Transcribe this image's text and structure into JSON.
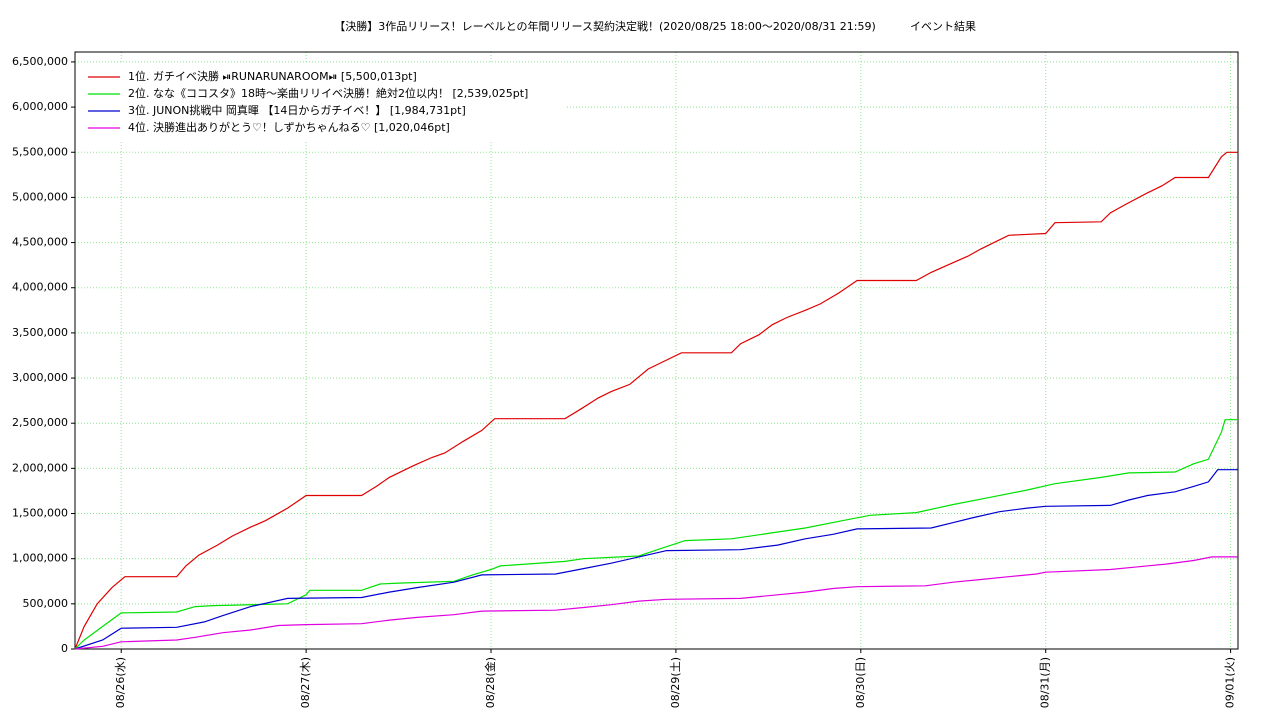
{
  "chart_data": {
    "type": "line",
    "title": "【決勝】3作品リリース！レーベルとの年間リリース契約決定戦！(2020/08/25 18:00〜2020/08/31 21:59)",
    "subtitle": "イベント結果",
    "xlim": [
      -0.25,
      6.04
    ],
    "xticks": [
      {
        "value": 0,
        "label": "08/26(水)"
      },
      {
        "value": 1,
        "label": "08/27(木)"
      },
      {
        "value": 2,
        "label": "08/28(金)"
      },
      {
        "value": 3,
        "label": "08/29(土)"
      },
      {
        "value": 4,
        "label": "08/30(日)"
      },
      {
        "value": 5,
        "label": "08/31(月)"
      },
      {
        "value": 6,
        "label": "09/01(火)"
      }
    ],
    "ylim": [
      0,
      6610000
    ],
    "yticks": [
      0,
      {
        "value": 500000,
        "label": "500,000"
      },
      {
        "value": 1000000,
        "label": "1,000,000"
      },
      {
        "value": 1500000,
        "label": "1,500,000"
      },
      {
        "value": 2000000,
        "label": "2,000,000"
      },
      {
        "value": 2500000,
        "label": "2,500,000"
      },
      {
        "value": 3000000,
        "label": "3,000,000"
      },
      {
        "value": 3500000,
        "label": "3,500,000"
      },
      {
        "value": 4000000,
        "label": "4,000,000"
      },
      {
        "value": 4500000,
        "label": "4,500,000"
      },
      {
        "value": 5000000,
        "label": "5,000,000"
      },
      {
        "value": 5500000,
        "label": "5,500,000"
      },
      {
        "value": 6000000,
        "label": "6,000,000"
      },
      {
        "value": 6500000,
        "label": "6,500,000"
      }
    ],
    "grid": true,
    "legend": "upper-left",
    "series": [
      {
        "name": "1位. ガチイベ決勝 ⏯RUNARUNAROOM⏯  [5,500,013pt]",
        "color": "#e00000",
        "x": [
          -0.25,
          -0.2,
          -0.13,
          -0.05,
          0.02,
          0.3,
          0.35,
          0.42,
          0.52,
          0.6,
          0.7,
          0.78,
          0.9,
          1.0,
          1.3,
          1.38,
          1.45,
          1.58,
          1.68,
          1.75,
          1.85,
          1.95,
          2.02,
          2.4,
          2.48,
          2.58,
          2.65,
          2.75,
          2.85,
          2.95,
          3.03,
          3.3,
          3.35,
          3.45,
          3.52,
          3.6,
          3.7,
          3.78,
          3.88,
          3.98,
          4.3,
          4.38,
          4.47,
          4.58,
          4.65,
          4.72,
          4.8,
          5.0,
          5.05,
          5.3,
          5.35,
          5.43,
          5.55,
          5.63,
          5.7,
          5.88,
          5.95,
          5.98,
          6.04
        ],
        "values": [
          0,
          250000,
          500000,
          680000,
          800000,
          800000,
          920000,
          1040000,
          1150000,
          1250000,
          1350000,
          1420000,
          1560000,
          1700000,
          1700000,
          1800000,
          1900000,
          2030000,
          2120000,
          2170000,
          2300000,
          2420000,
          2550000,
          2550000,
          2650000,
          2780000,
          2850000,
          2930000,
          3100000,
          3200000,
          3280000,
          3280000,
          3380000,
          3480000,
          3590000,
          3670000,
          3750000,
          3820000,
          3940000,
          4080000,
          4080000,
          4170000,
          4250000,
          4350000,
          4430000,
          4500000,
          4580000,
          4600000,
          4720000,
          4730000,
          4830000,
          4920000,
          5050000,
          5130000,
          5220000,
          5220000,
          5450000,
          5500013,
          5500013
        ]
      },
      {
        "name": "2位. なな《ココスタ》18時〜楽曲リリイベ決勝！絶対2位以内！ [2,539,025pt]",
        "color": "#00e000",
        "x": [
          -0.25,
          -0.2,
          -0.1,
          0,
          0.3,
          0.4,
          0.5,
          0.9,
          1.0,
          1.02,
          1.3,
          1.4,
          1.5,
          1.8,
          1.9,
          2.0,
          2.05,
          2.4,
          2.5,
          2.8,
          2.9,
          3.05,
          3.3,
          3.5,
          3.7,
          3.9,
          4.05,
          4.3,
          4.5,
          4.7,
          4.9,
          5.05,
          5.3,
          5.45,
          5.7,
          5.8,
          5.88,
          5.95,
          5.97,
          6.04
        ],
        "values": [
          0,
          100000,
          250000,
          400000,
          410000,
          470000,
          480000,
          500000,
          600000,
          650000,
          650000,
          720000,
          730000,
          750000,
          820000,
          880000,
          920000,
          970000,
          1000000,
          1030000,
          1100000,
          1200000,
          1220000,
          1280000,
          1340000,
          1420000,
          1480000,
          1510000,
          1600000,
          1680000,
          1760000,
          1830000,
          1900000,
          1950000,
          1960000,
          2050000,
          2100000,
          2400000,
          2539025,
          2539025
        ]
      },
      {
        "name": "3位. JUNON挑戦中 岡真暉 【14日からガチイベ！】 [1,984,731pt]",
        "color": "#0000d0",
        "x": [
          -0.25,
          -0.1,
          0,
          0.3,
          0.45,
          0.55,
          0.7,
          0.9,
          1.3,
          1.45,
          1.6,
          1.8,
          1.95,
          2.35,
          2.5,
          2.65,
          2.8,
          2.95,
          3.35,
          3.55,
          3.7,
          3.85,
          3.98,
          4.38,
          4.5,
          4.6,
          4.75,
          4.9,
          5.0,
          5.35,
          5.45,
          5.55,
          5.7,
          5.8,
          5.88,
          5.93,
          6.04
        ],
        "values": [
          0,
          100000,
          230000,
          240000,
          300000,
          370000,
          470000,
          560000,
          570000,
          630000,
          680000,
          740000,
          820000,
          830000,
          890000,
          950000,
          1020000,
          1090000,
          1100000,
          1150000,
          1220000,
          1270000,
          1330000,
          1340000,
          1400000,
          1450000,
          1520000,
          1560000,
          1580000,
          1590000,
          1650000,
          1700000,
          1740000,
          1800000,
          1850000,
          1984731,
          1984731
        ]
      },
      {
        "name": "4位. 決勝進出ありがとう♡！しずかちゃんねる♡ [1,020,046pt]",
        "color": "#e000e0",
        "x": [
          -0.25,
          -0.1,
          0,
          0.3,
          0.4,
          0.55,
          0.7,
          0.85,
          1.0,
          1.3,
          1.45,
          1.6,
          1.8,
          1.95,
          2.35,
          2.5,
          2.65,
          2.8,
          2.95,
          3.35,
          3.55,
          3.7,
          3.85,
          3.98,
          4.35,
          4.5,
          4.65,
          4.8,
          4.95,
          5.0,
          5.35,
          5.5,
          5.65,
          5.8,
          5.9,
          6.04
        ],
        "values": [
          0,
          30000,
          80000,
          100000,
          130000,
          180000,
          210000,
          260000,
          270000,
          280000,
          320000,
          350000,
          380000,
          420000,
          430000,
          460000,
          490000,
          530000,
          550000,
          560000,
          600000,
          630000,
          670000,
          690000,
          700000,
          740000,
          770000,
          800000,
          830000,
          850000,
          880000,
          910000,
          940000,
          980000,
          1020046,
          1020046
        ]
      }
    ]
  }
}
